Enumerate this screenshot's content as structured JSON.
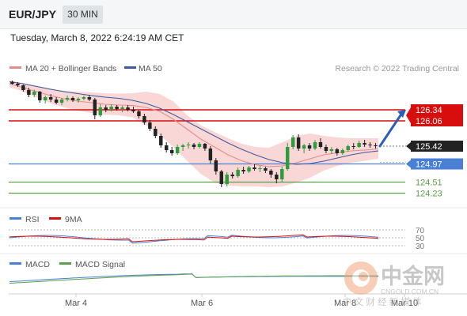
{
  "header": {
    "pair": "EUR/JPY",
    "timeframe": "30 MIN"
  },
  "timestamp": "Tuesday, March 8, 2022 6:24:19 AM CET",
  "legend": {
    "ma20": "MA 20 + Bollinger Bands",
    "ma50": "MA 50"
  },
  "credit": "Research © 2022 Trading Central",
  "rsi_legend": {
    "rsi": "RSI",
    "ma": "9MA"
  },
  "macd_legend": {
    "macd": "MACD",
    "signal": "MACD Signal"
  },
  "watermark": {
    "brand": "中金网",
    "url": "CNGOLD.COM.CN",
    "tagline": "中 文 财 经 新 媒 体"
  },
  "colors": {
    "resistance": "#d80e0e",
    "support": "#4a7fd6",
    "support_green": "#5aa04a",
    "up_candle": "#2c9c3c",
    "down_candle": "#222222",
    "ma20": "#e88a8a",
    "ma50": "#3d5a9c",
    "bands": "#f7c9c9",
    "rsi": "#4a7fd6",
    "rsi_ma": "#d80e0e",
    "macd": "#4a7fd6",
    "macd_signal": "#5aa04a",
    "arrow": "#2b5fb8"
  },
  "chart_data": {
    "type": "candlestick",
    "price_axis": {
      "ylim": [
        123.92,
        127.08
      ]
    },
    "levels": [
      {
        "label": "126.34",
        "value": 126.34,
        "role": "resistance",
        "color": "#d80e0e"
      },
      {
        "label": "126.06",
        "value": 126.06,
        "role": "resistance",
        "color": "#d80e0e"
      },
      {
        "label": "125.42",
        "value": 125.42,
        "role": "last price",
        "color": "#222222"
      },
      {
        "label": "124.97",
        "value": 124.97,
        "role": "pivot",
        "color": "#4a7fd6"
      },
      {
        "label": "124.51",
        "value": 124.51,
        "role": "support",
        "color": "#5aa04a"
      },
      {
        "label": "124.23",
        "value": 124.23,
        "role": "support",
        "color": "#5aa04a"
      }
    ],
    "x_ticks": [
      "Mar 4",
      "Mar 6",
      "Mar 8",
      "Mar 10"
    ],
    "candles": [
      [
        127.05,
        127.08,
        126.98,
        127.0
      ],
      [
        127.0,
        127.04,
        126.92,
        126.96
      ],
      [
        126.96,
        126.98,
        126.8,
        126.84
      ],
      [
        126.84,
        126.9,
        126.66,
        126.72
      ],
      [
        126.72,
        126.85,
        126.66,
        126.8
      ],
      [
        126.8,
        126.82,
        126.52,
        126.58
      ],
      [
        126.58,
        126.7,
        126.5,
        126.66
      ],
      [
        126.66,
        126.74,
        126.54,
        126.6
      ],
      [
        126.6,
        126.66,
        126.48,
        126.52
      ],
      [
        126.52,
        126.64,
        126.46,
        126.6
      ],
      [
        126.6,
        126.7,
        126.55,
        126.64
      ],
      [
        126.64,
        126.68,
        126.54,
        126.58
      ],
      [
        126.58,
        126.66,
        126.52,
        126.62
      ],
      [
        126.62,
        126.7,
        126.58,
        126.66
      ],
      [
        126.66,
        126.72,
        126.56,
        126.6
      ],
      [
        126.6,
        126.64,
        126.1,
        126.2
      ],
      [
        126.2,
        126.48,
        126.16,
        126.4
      ],
      [
        126.4,
        126.46,
        126.28,
        126.34
      ],
      [
        126.34,
        126.48,
        126.3,
        126.42
      ],
      [
        126.42,
        126.46,
        126.32,
        126.36
      ],
      [
        126.36,
        126.44,
        126.28,
        126.4
      ],
      [
        126.4,
        126.46,
        126.3,
        126.34
      ],
      [
        126.34,
        126.42,
        126.26,
        126.3
      ],
      [
        126.3,
        126.34,
        126.12,
        126.18
      ],
      [
        126.18,
        126.24,
        125.96,
        126.02
      ],
      [
        126.02,
        126.08,
        125.8,
        125.86
      ],
      [
        125.86,
        125.92,
        125.62,
        125.68
      ],
      [
        125.68,
        125.74,
        125.38,
        125.44
      ],
      [
        125.44,
        125.52,
        125.26,
        125.32
      ],
      [
        125.32,
        125.4,
        125.18,
        125.24
      ],
      [
        125.24,
        125.46,
        125.2,
        125.4
      ],
      [
        125.4,
        125.48,
        125.3,
        125.44
      ],
      [
        125.44,
        125.52,
        125.36,
        125.46
      ],
      [
        125.46,
        125.5,
        125.34,
        125.4
      ],
      [
        125.4,
        125.52,
        125.36,
        125.48
      ],
      [
        125.48,
        125.5,
        125.3,
        125.36
      ],
      [
        125.36,
        125.42,
        124.98,
        125.06
      ],
      [
        125.06,
        125.12,
        124.7,
        124.78
      ],
      [
        124.78,
        124.82,
        124.38,
        124.46
      ],
      [
        124.46,
        124.76,
        124.4,
        124.7
      ],
      [
        124.7,
        124.76,
        124.6,
        124.66
      ],
      [
        124.66,
        124.88,
        124.62,
        124.82
      ],
      [
        124.82,
        124.9,
        124.72,
        124.78
      ],
      [
        124.78,
        124.92,
        124.74,
        124.88
      ],
      [
        124.88,
        124.96,
        124.8,
        124.84
      ],
      [
        124.84,
        124.92,
        124.76,
        124.86
      ],
      [
        124.86,
        124.9,
        124.74,
        124.8
      ],
      [
        124.8,
        124.84,
        124.62,
        124.7
      ],
      [
        124.7,
        124.76,
        124.48,
        124.58
      ],
      [
        124.58,
        124.9,
        124.52,
        124.84
      ],
      [
        124.84,
        125.5,
        124.8,
        125.4
      ],
      [
        125.4,
        125.7,
        125.34,
        125.64
      ],
      [
        125.64,
        125.72,
        125.3,
        125.36
      ],
      [
        125.36,
        125.48,
        125.24,
        125.44
      ],
      [
        125.44,
        125.5,
        125.3,
        125.36
      ],
      [
        125.36,
        125.58,
        125.32,
        125.52
      ],
      [
        125.52,
        125.62,
        125.36,
        125.4
      ],
      [
        125.4,
        125.46,
        125.24,
        125.3
      ],
      [
        125.3,
        125.4,
        125.22,
        125.34
      ],
      [
        125.34,
        125.38,
        125.18,
        125.24
      ],
      [
        125.24,
        125.36,
        125.2,
        125.32
      ],
      [
        125.32,
        125.46,
        125.28,
        125.42
      ],
      [
        125.42,
        125.5,
        125.34,
        125.4
      ],
      [
        125.4,
        125.56,
        125.38,
        125.5
      ],
      [
        125.5,
        125.58,
        125.4,
        125.46
      ],
      [
        125.46,
        125.52,
        125.38,
        125.44
      ],
      [
        125.44,
        125.5,
        125.36,
        125.42
      ]
    ],
    "ma20": [
      127.0,
      126.9,
      126.8,
      126.7,
      126.62,
      126.56,
      126.52,
      126.48,
      126.46,
      126.45,
      126.4,
      126.3,
      126.1,
      125.85,
      125.6,
      125.4,
      125.2,
      125.05,
      124.95,
      124.9,
      124.92,
      125.0,
      125.1,
      125.2,
      125.25,
      125.3,
      125.32,
      125.35
    ],
    "ma50": [
      127.05,
      127.0,
      126.93,
      126.86,
      126.8,
      126.75,
      126.7,
      126.66,
      126.63,
      126.58,
      126.5,
      126.38,
      126.22,
      126.04,
      125.86,
      125.68,
      125.5,
      125.34,
      125.2,
      125.08,
      125.0,
      124.96,
      124.98,
      125.04,
      125.12,
      125.2,
      125.26,
      125.3
    ],
    "bb_upper": [
      127.08,
      127.02,
      126.95,
      126.88,
      126.82,
      126.8,
      126.78,
      126.76,
      126.75,
      126.76,
      126.8,
      126.74,
      126.55,
      126.2,
      125.95,
      125.78,
      125.62,
      125.48,
      125.4,
      125.38,
      125.52,
      125.68,
      125.74,
      125.68,
      125.64,
      125.62,
      125.62,
      125.62
    ],
    "bb_lower": [
      126.92,
      126.8,
      126.65,
      126.5,
      126.4,
      126.32,
      126.26,
      126.22,
      126.2,
      126.15,
      125.95,
      125.7,
      125.4,
      125.05,
      124.72,
      124.5,
      124.42,
      124.4,
      124.4,
      124.38,
      124.4,
      124.5,
      124.62,
      124.8,
      124.92,
      125.0,
      125.05,
      125.1
    ],
    "forecast": {
      "from": 125.42,
      "to": 126.34
    },
    "rsi": {
      "levels": [
        70,
        50,
        30
      ]
    },
    "macd": {}
  }
}
